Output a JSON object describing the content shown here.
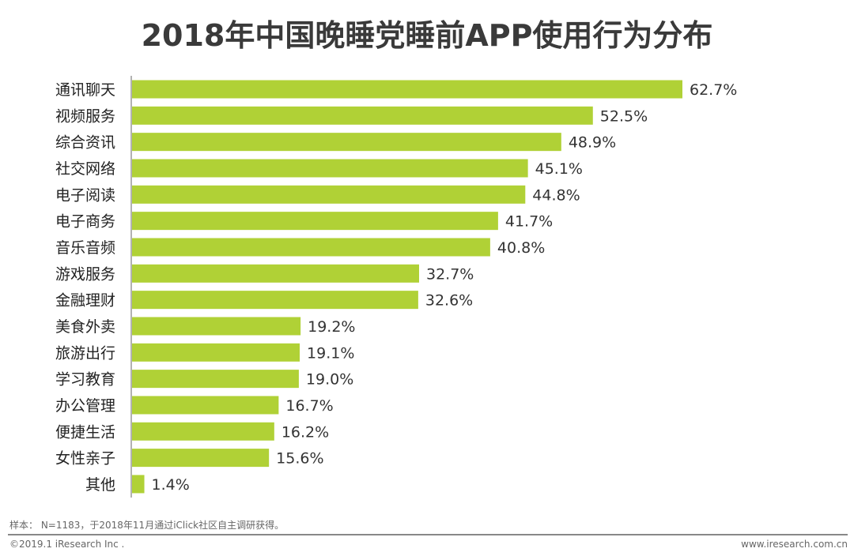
{
  "chart_data": {
    "type": "bar",
    "orientation": "horizontal",
    "title": "2018年中国晚睡党睡前APP使用行为分布",
    "categories": [
      "通讯聊天",
      "视频服务",
      "综合资讯",
      "社交网络",
      "电子阅读",
      "电子商务",
      "音乐音频",
      "游戏服务",
      "金融理财",
      "美食外卖",
      "旅游出行",
      "学习教育",
      "办公管理",
      "便捷生活",
      "女性亲子",
      "其他"
    ],
    "values": [
      62.7,
      52.5,
      48.9,
      45.1,
      44.8,
      41.7,
      40.8,
      32.7,
      32.6,
      19.2,
      19.1,
      19.0,
      16.7,
      16.2,
      15.6,
      1.4
    ],
    "value_suffix": "%",
    "xlim": [
      0,
      62.7
    ],
    "grid": false,
    "bar_color": "#b0d136"
  },
  "footer": {
    "note": "样本： N=1183，于2018年11月通过iClick社区自主调研获得。",
    "copyright": "©2019.1 iResearch Inc .",
    "site": "www.iresearch.com.cn"
  }
}
